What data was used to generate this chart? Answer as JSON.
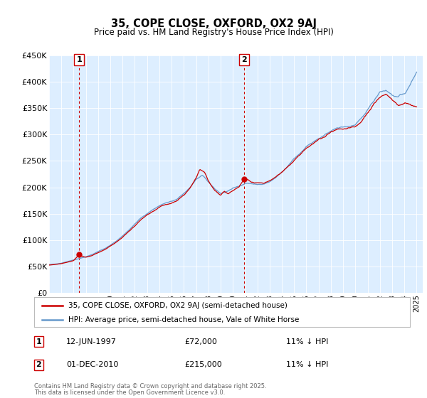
{
  "title1": "35, COPE CLOSE, OXFORD, OX2 9AJ",
  "title2": "Price paid vs. HM Land Registry's House Price Index (HPI)",
  "legend1": "35, COPE CLOSE, OXFORD, OX2 9AJ (semi-detached house)",
  "legend2": "HPI: Average price, semi-detached house, Vale of White Horse",
  "purchase1": {
    "label": "1",
    "date": "12-JUN-1997",
    "price": 72000,
    "hpi_note": "11% ↓ HPI",
    "year": 1997.45
  },
  "purchase2": {
    "label": "2",
    "date": "01-DEC-2010",
    "price": 215000,
    "hpi_note": "11% ↓ HPI",
    "year": 2010.92
  },
  "ylabel_ticks": [
    "£0",
    "£50K",
    "£100K",
    "£150K",
    "£200K",
    "£250K",
    "£300K",
    "£350K",
    "£400K",
    "£450K"
  ],
  "ytick_values": [
    0,
    50000,
    100000,
    150000,
    200000,
    250000,
    300000,
    350000,
    400000,
    450000
  ],
  "color_red": "#cc0000",
  "color_blue": "#6699cc",
  "color_dashed": "#cc0000",
  "bg_color": "#ddeeff",
  "footer": "Contains HM Land Registry data © Crown copyright and database right 2025.\nThis data is licensed under the Open Government Licence v3.0."
}
